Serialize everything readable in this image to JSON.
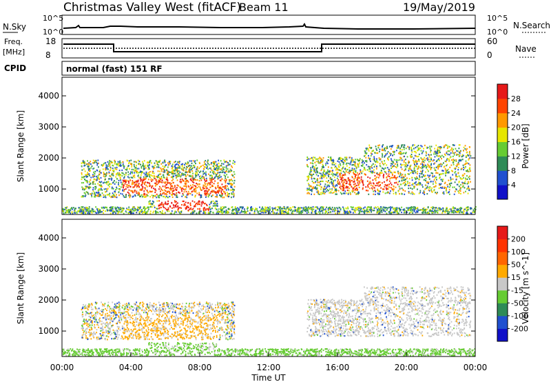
{
  "header": {
    "station": "Christmas Valley West (fitACF)",
    "beam": "Beam 11",
    "date": "19/May/2019"
  },
  "nsky": {
    "label": "N.Sky",
    "tick_top": "10^5",
    "tick_bottom": "10^0",
    "right_label": "N.Search",
    "right_tick_top": "10^5",
    "right_tick_bottom": "10^0"
  },
  "freq": {
    "label_line1": "Freq.",
    "label_line2": "[MHz]",
    "tick_top": "18",
    "tick_bottom": "8",
    "right_label": "Nave",
    "right_tick_top": "60",
    "right_tick_bottom": "0"
  },
  "cpid": {
    "label": "CPID",
    "value": "normal (fast) 151 RF"
  },
  "colors": {
    "sky_blue": "#2050d0",
    "deep_blue": "#1010c8",
    "teal": "#2e8b57",
    "light_green": "#66cc33",
    "yellow": "#e6e600",
    "orange": "#ff9900",
    "red": "#e61919",
    "grey": "#c8c8c8"
  },
  "chart_data": [
    {
      "type": "heatmap",
      "title": "",
      "xlabel": "Time UT",
      "ylabel": "Slant Range [km]",
      "x_ticks": [
        "00:00",
        "04:00",
        "08:00",
        "12:00",
        "16:00",
        "20:00",
        "00:00"
      ],
      "x_range_hours": [
        0,
        24
      ],
      "y_ticks": [
        "1000",
        "2000",
        "3000",
        "4000"
      ],
      "y_tick_values": [
        1000,
        2000,
        3000,
        4000
      ],
      "ylim": [
        180,
        4600
      ],
      "colorbar": {
        "label": "Power [dB]",
        "ticks": [
          "4",
          "8",
          "12",
          "16",
          "20",
          "24",
          "28"
        ],
        "range": [
          0,
          32
        ],
        "palette": [
          "#1010c8",
          "#2050d0",
          "#2e8b57",
          "#66cc33",
          "#e6e600",
          "#ff9900",
          "#ff4400",
          "#e61919"
        ]
      },
      "regions": [
        {
          "t0": 1.1,
          "t1": 10.0,
          "r0": 700,
          "r1": 1900,
          "value": "mixed_high"
        },
        {
          "t0": 14.2,
          "t1": 23.7,
          "r0": 800,
          "r1": 2400,
          "value": "mixed_high"
        },
        {
          "t0": 0.0,
          "t1": 24.0,
          "r0": 180,
          "r1": 350,
          "value": "low"
        }
      ]
    },
    {
      "type": "heatmap",
      "title": "",
      "xlabel": "Time UT",
      "ylabel": "Slant Range [km]",
      "x_ticks": [
        "00:00",
        "04:00",
        "08:00",
        "12:00",
        "16:00",
        "20:00",
        "00:00"
      ],
      "x_range_hours": [
        0,
        24
      ],
      "y_ticks": [
        "1000",
        "2000",
        "3000",
        "4000"
      ],
      "y_tick_values": [
        1000,
        2000,
        3000,
        4000
      ],
      "ylim": [
        180,
        4600
      ],
      "colorbar": {
        "label": "Velocity [m s^-1]",
        "ticks": [
          "200",
          "100",
          "50",
          "15",
          "-15",
          "-50",
          "-100",
          "-200"
        ],
        "palette": [
          "#1010c8",
          "#2050d0",
          "#2e8b57",
          "#66cc33",
          "#c8c8c8",
          "#ffaa00",
          "#ff6600",
          "#ff3300",
          "#e61919"
        ]
      },
      "regions": [
        {
          "t0": 1.1,
          "t1": 10.0,
          "r0": 700,
          "r1": 1900,
          "value": "grey_orange"
        },
        {
          "t0": 14.2,
          "t1": 23.7,
          "r0": 800,
          "r1": 2400,
          "value": "grey"
        },
        {
          "t0": 0.0,
          "t1": 24.0,
          "r0": 180,
          "r1": 350,
          "value": "green"
        }
      ]
    }
  ]
}
